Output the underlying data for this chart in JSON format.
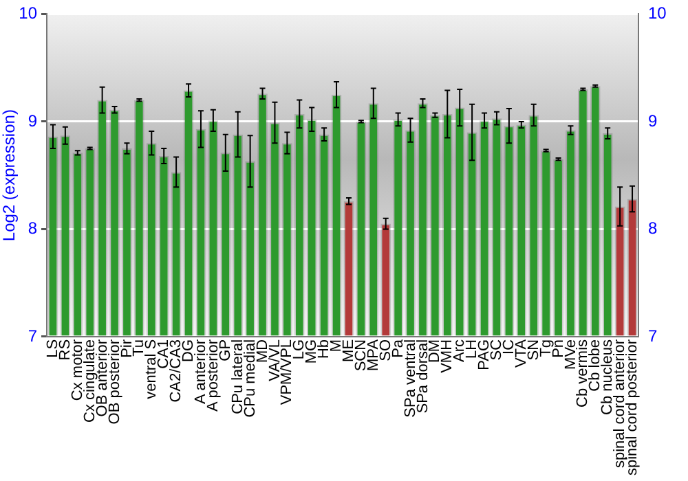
{
  "chart_data": {
    "type": "bar",
    "ylabel": "Log2 (expression)",
    "categories": [
      "LS",
      "RS",
      "Cx motor",
      "Cx cingulate",
      "OB anterior",
      "OB posterior",
      "Pir",
      "Tu",
      "ventral S",
      "CA1",
      "CA2/CA3",
      "DG",
      "A anterior",
      "A posterior",
      "GP",
      "CPu lateral",
      "CPu medial",
      "MD",
      "VA/VL",
      "VPM/VPL",
      "LG",
      "MG",
      "Hb",
      "M",
      "ME",
      "SCN",
      "MPA",
      "SO",
      "Pa",
      "SPa ventral",
      "SPa dorsal",
      "DM",
      "VMH",
      "Arc",
      "LH",
      "PAG",
      "SC",
      "IC",
      "VTA",
      "SN",
      "Tg",
      "Pn",
      "MVe",
      "Cb vermis",
      "Cb lobe",
      "Cb nucleus",
      "spinal cord anterior",
      "spinal cord posterior"
    ],
    "values": [
      8.86,
      8.87,
      8.71,
      8.75,
      9.2,
      9.11,
      8.75,
      9.2,
      8.8,
      8.68,
      8.53,
      9.29,
      8.93,
      9.01,
      8.71,
      8.88,
      8.63,
      9.26,
      8.99,
      8.8,
      9.07,
      9.02,
      8.88,
      9.25,
      8.26,
      9.0,
      9.17,
      8.05,
      9.02,
      8.92,
      9.17,
      9.06,
      9.07,
      9.13,
      8.9,
      9.01,
      9.03,
      8.96,
      8.97,
      9.06,
      8.73,
      8.65,
      8.92,
      9.3,
      9.33,
      8.89,
      8.21,
      8.28
    ],
    "errors": [
      0.11,
      0.08,
      0.02,
      0.01,
      0.12,
      0.03,
      0.05,
      0.01,
      0.11,
      0.07,
      0.14,
      0.06,
      0.17,
      0.1,
      0.17,
      0.21,
      0.24,
      0.05,
      0.19,
      0.1,
      0.13,
      0.11,
      0.06,
      0.12,
      0.03,
      0.01,
      0.14,
      0.05,
      0.06,
      0.11,
      0.04,
      0.02,
      0.22,
      0.17,
      0.26,
      0.07,
      0.06,
      0.16,
      0.03,
      0.1,
      0.01,
      0.01,
      0.04,
      0.01,
      0.01,
      0.05,
      0.18,
      0.12
    ],
    "colors": [
      "#2e9a2e",
      "#2e9a2e",
      "#2e9a2e",
      "#2e9a2e",
      "#2e9a2e",
      "#2e9a2e",
      "#2e9a2e",
      "#2e9a2e",
      "#2e9a2e",
      "#2e9a2e",
      "#2e9a2e",
      "#2e9a2e",
      "#2e9a2e",
      "#2e9a2e",
      "#2e9a2e",
      "#2e9a2e",
      "#2e9a2e",
      "#2e9a2e",
      "#2e9a2e",
      "#2e9a2e",
      "#2e9a2e",
      "#2e9a2e",
      "#2e9a2e",
      "#2e9a2e",
      "#b33a3a",
      "#2e9a2e",
      "#2e9a2e",
      "#b33a3a",
      "#2e9a2e",
      "#2e9a2e",
      "#2e9a2e",
      "#2e9a2e",
      "#2e9a2e",
      "#2e9a2e",
      "#2e9a2e",
      "#2e9a2e",
      "#2e9a2e",
      "#2e9a2e",
      "#2e9a2e",
      "#2e9a2e",
      "#2e9a2e",
      "#2e9a2e",
      "#2e9a2e",
      "#2e9a2e",
      "#2e9a2e",
      "#2e9a2e",
      "#b33a3a",
      "#b33a3a"
    ],
    "ylim": [
      7,
      10
    ],
    "yticks": [
      7,
      8,
      9,
      10
    ],
    "y2lim": [
      7,
      10
    ],
    "y2ticks": [
      7,
      8,
      9,
      10
    ],
    "grid": "y",
    "legend": false
  }
}
